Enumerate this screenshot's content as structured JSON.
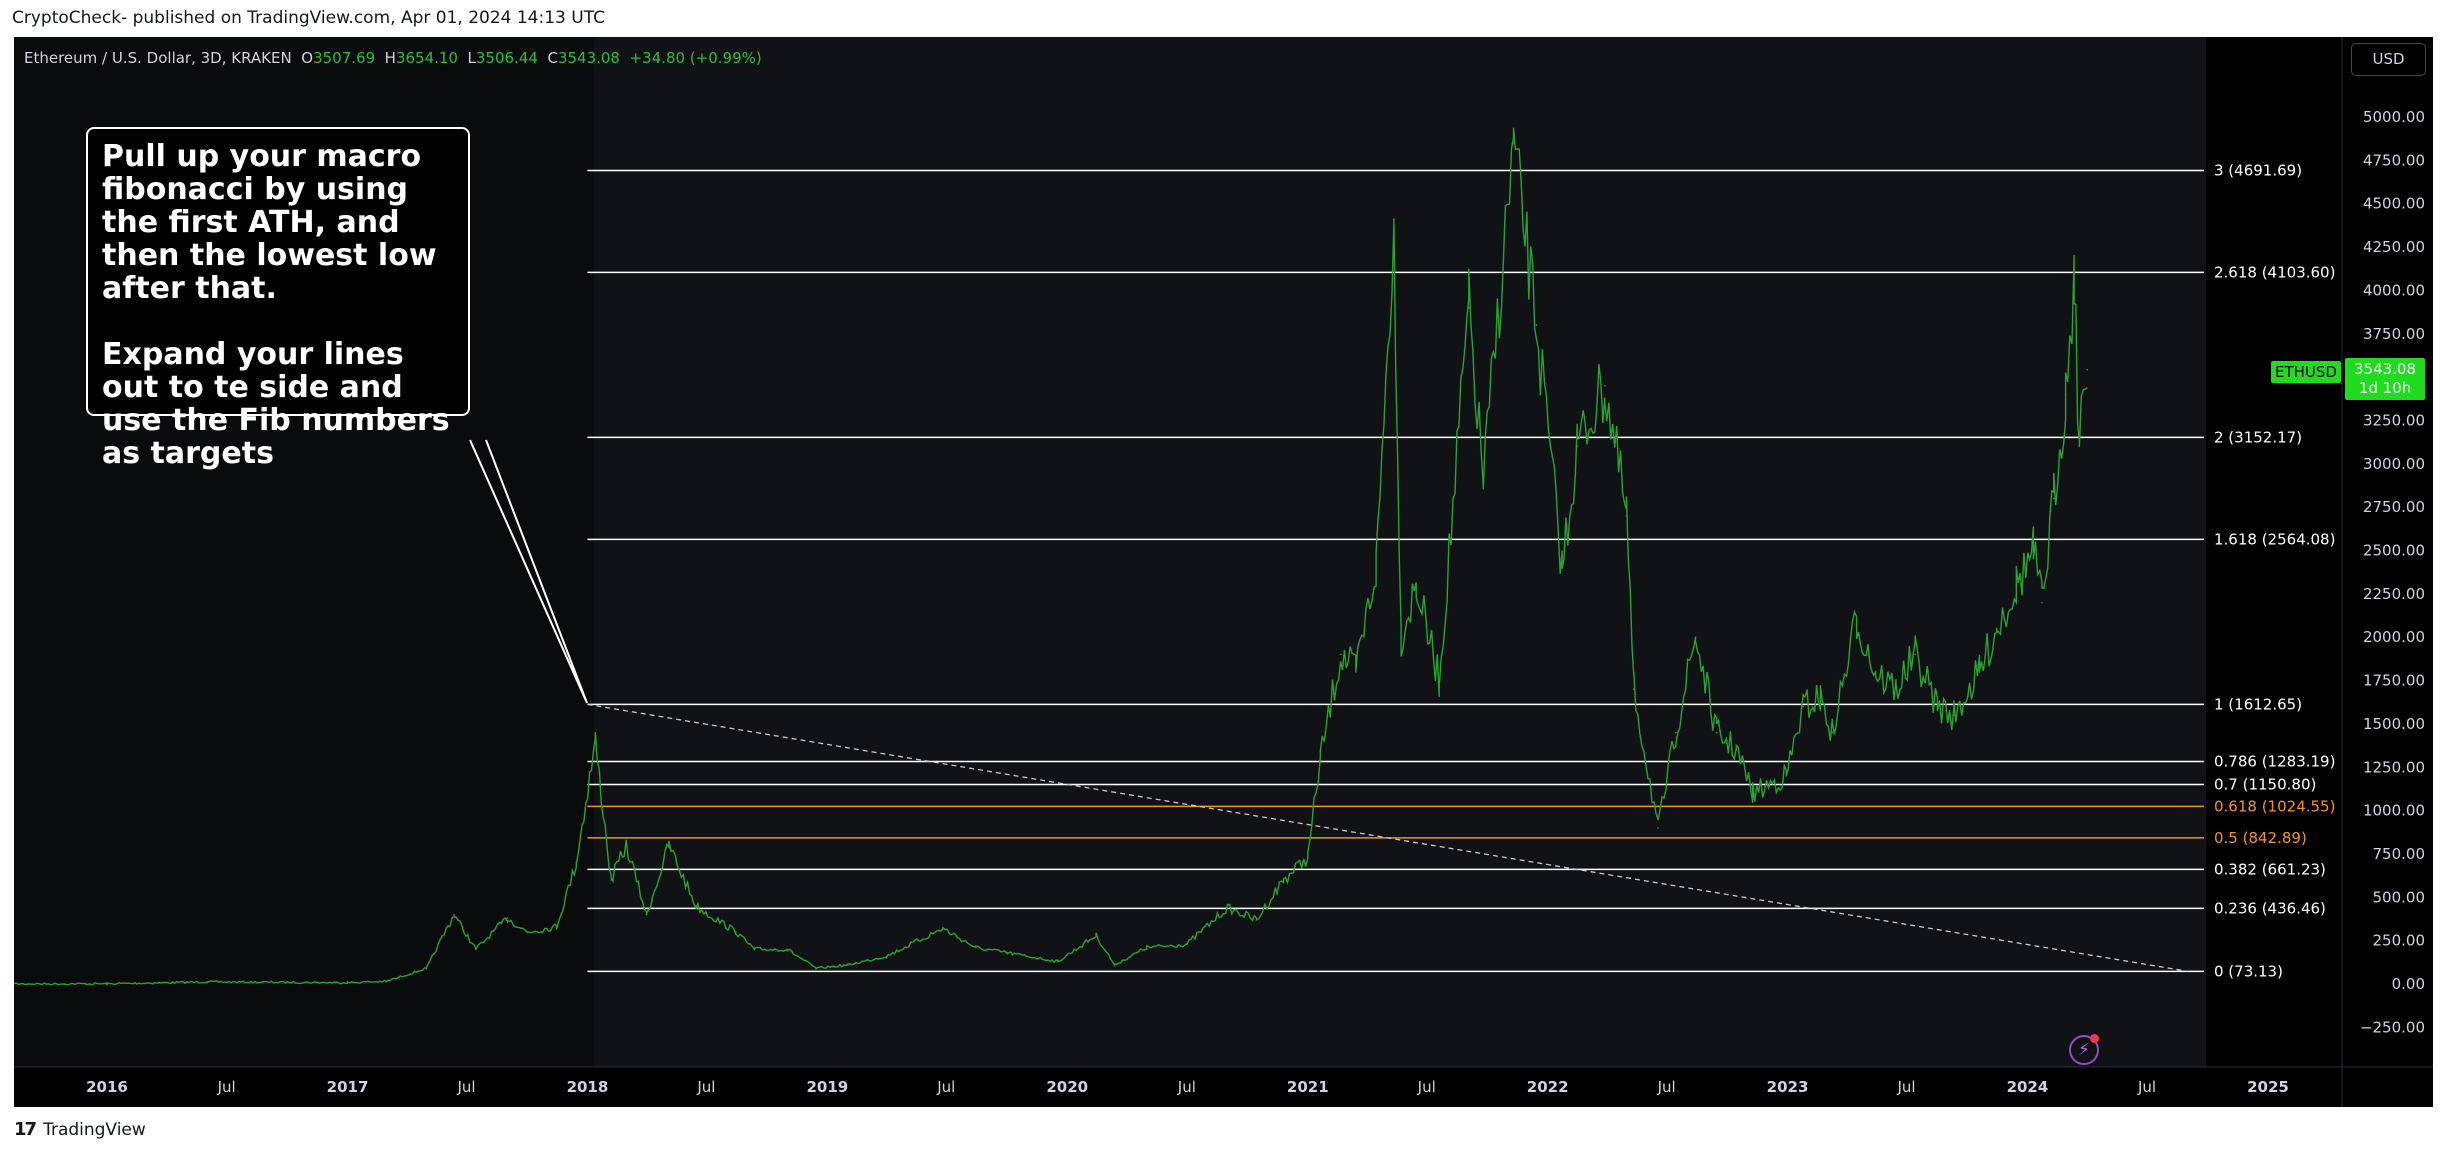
{
  "caption": "CryptoCheck- published on TradingView.com, Apr 01, 2024 14:13 UTC",
  "footer": {
    "logo_mark": "17",
    "logo_text": "TradingView",
    "logo_icon": "tradingview-logo-icon"
  },
  "legend": {
    "title": "Ethereum / U.S. Dollar, 3D, KRAKEN",
    "o_label": "O",
    "o": "3507.69",
    "h_label": "H",
    "h": "3654.10",
    "l_label": "L",
    "l": "3506.44",
    "c_label": "C",
    "c": "3543.08",
    "change": "+34.80 (+0.99%)"
  },
  "currency_button": "USD",
  "price_tag": {
    "symbol": "ETHUSD",
    "price": "3543.08",
    "countdown": "1d 10h"
  },
  "annotation": {
    "paragraph1": "Pull up your macro fibonacci by using the first ATH, and then the lowest low after that.",
    "paragraph2": "Expand your lines out to te side and use the Fib numbers as targets"
  },
  "colors": {
    "background": "#000000",
    "candle": "#26a62f",
    "fib_line": "#ffffff",
    "fib_highlight": "#f7931a",
    "axis_text": "#d1d4dc",
    "price_tag": "#1fdc1f"
  },
  "chart_data": {
    "type": "line",
    "series": [
      {
        "x": [
          "2015-08-07",
          "2016-01-01",
          "2016-06-01",
          "2017-01-01",
          "2017-03-01",
          "2017-05-01",
          "2017-06-12",
          "2017-07-15",
          "2017-09-01",
          "2017-10-01",
          "2017-11-15",
          "2017-12-15",
          "2018-01-13",
          "2018-02-06",
          "2018-03-01",
          "2018-04-01",
          "2018-05-05",
          "2018-06-15",
          "2018-08-15",
          "2018-09-12",
          "2018-11-01",
          "2018-12-15",
          "2019-02-01",
          "2019-04-01",
          "2019-06-26",
          "2019-08-15",
          "2019-10-01",
          "2019-12-18",
          "2020-02-14",
          "2020-03-13",
          "2020-05-01",
          "2020-07-01",
          "2020-09-01",
          "2020-10-15",
          "2020-11-25",
          "2021-01-01",
          "2021-01-20",
          "2021-02-20",
          "2021-03-15",
          "2021-04-15",
          "2021-05-12",
          "2021-05-23",
          "2021-06-15",
          "2021-07-20",
          "2021-09-03",
          "2021-09-25",
          "2021-11-10",
          "2021-12-15",
          "2022-01-23",
          "2022-02-15",
          "2022-03-29",
          "2022-05-01",
          "2022-05-12",
          "2022-06-18",
          "2022-07-15",
          "2022-08-14",
          "2022-09-15",
          "2022-10-15",
          "2022-11-09",
          "2022-12-30",
          "2023-01-25",
          "2023-02-20",
          "2023-03-10",
          "2023-04-16",
          "2023-05-15",
          "2023-06-15",
          "2023-07-14",
          "2023-08-17",
          "2023-09-11",
          "2023-10-20",
          "2023-11-15",
          "2023-12-15",
          "2024-01-10",
          "2024-01-23",
          "2024-02-10",
          "2024-02-28",
          "2024-03-12",
          "2024-03-20",
          "2024-04-01"
        ],
        "y": [
          1,
          1,
          12,
          8,
          15,
          90,
          400,
          200,
          380,
          300,
          330,
          700,
          1400,
          600,
          800,
          400,
          800,
          450,
          300,
          200,
          200,
          90,
          110,
          160,
          320,
          210,
          180,
          130,
          280,
          110,
          210,
          230,
          440,
          370,
          600,
          730,
          1300,
          1900,
          1800,
          2400,
          4350,
          2000,
          2300,
          1750,
          3900,
          2900,
          4850,
          3800,
          2400,
          3100,
          3450,
          2700,
          1700,
          900,
          1450,
          2000,
          1450,
          1350,
          1100,
          1200,
          1600,
          1650,
          1450,
          2100,
          1800,
          1700,
          1900,
          1600,
          1550,
          1800,
          2050,
          2300,
          2500,
          2200,
          2800,
          3400,
          4090,
          3100,
          3543
        ]
      }
    ],
    "fib_levels": [
      {
        "label": "0 (73.13)",
        "value": 73.13
      },
      {
        "label": "0.236 (436.46)",
        "value": 436.46
      },
      {
        "label": "0.382 (661.23)",
        "value": 661.23
      },
      {
        "label": "0.5 (842.89)",
        "value": 842.89,
        "highlight": true
      },
      {
        "label": "0.618 (1024.55)",
        "value": 1024.55,
        "highlight": true
      },
      {
        "label": "0.7 (1150.80)",
        "value": 1150.8
      },
      {
        "label": "0.786 (1283.19)",
        "value": 1283.19
      },
      {
        "label": "1 (1612.65)",
        "value": 1612.65
      },
      {
        "label": "1.618 (2564.08)",
        "value": 2564.08
      },
      {
        "label": "2 (3152.17)",
        "value": 3152.17
      },
      {
        "label": "2.618 (4103.60)",
        "value": 4103.6
      },
      {
        "label": "3 (4691.69)",
        "value": 4691.69
      }
    ],
    "fib_start_date": "2018-01-01",
    "fib_end_date": "2024-09-01",
    "trend_line": {
      "from": [
        "2018-01-01",
        1612.65
      ],
      "to": [
        "2024-09-01",
        73.13
      ]
    },
    "current_price": 3543.08,
    "y_ticks": [
      "5000.00",
      "4750.00",
      "4500.00",
      "4250.00",
      "4000.00",
      "3750.00",
      "3500.00",
      "3250.00",
      "3000.00",
      "2750.00",
      "2500.00",
      "2250.00",
      "2000.00",
      "1750.00",
      "1500.00",
      "1250.00",
      "1000.00",
      "750.00",
      "500.00",
      "250.00",
      "0.00",
      "−250.00"
    ],
    "y_tick_values": [
      5000,
      4750,
      4500,
      4250,
      4000,
      3750,
      3500,
      3250,
      3000,
      2750,
      2500,
      2250,
      2000,
      1750,
      1500,
      1250,
      1000,
      750,
      500,
      250,
      0,
      -250
    ],
    "x_ticks": [
      {
        "label": "2016",
        "date": "2016-01-01",
        "major": true
      },
      {
        "label": "Jul",
        "date": "2016-07-01"
      },
      {
        "label": "2017",
        "date": "2017-01-01",
        "major": true
      },
      {
        "label": "Jul",
        "date": "2017-07-01"
      },
      {
        "label": "2018",
        "date": "2018-01-01",
        "major": true
      },
      {
        "label": "Jul",
        "date": "2018-07-01"
      },
      {
        "label": "2019",
        "date": "2019-01-01",
        "major": true
      },
      {
        "label": "Jul",
        "date": "2019-07-01"
      },
      {
        "label": "2020",
        "date": "2020-01-01",
        "major": true
      },
      {
        "label": "Jul",
        "date": "2020-07-01"
      },
      {
        "label": "2021",
        "date": "2021-01-01",
        "major": true
      },
      {
        "label": "Jul",
        "date": "2021-07-01"
      },
      {
        "label": "2022",
        "date": "2022-01-01",
        "major": true
      },
      {
        "label": "Jul",
        "date": "2022-07-01"
      },
      {
        "label": "2023",
        "date": "2023-01-01",
        "major": true
      },
      {
        "label": "Jul",
        "date": "2023-07-01"
      },
      {
        "label": "2024",
        "date": "2024-01-01",
        "major": true
      },
      {
        "label": "Jul",
        "date": "2024-07-01"
      },
      {
        "label": "2025",
        "date": "2025-01-01",
        "major": true
      }
    ],
    "ylim": [
      -390,
      5100
    ],
    "grid": false,
    "legend": "top-left"
  }
}
